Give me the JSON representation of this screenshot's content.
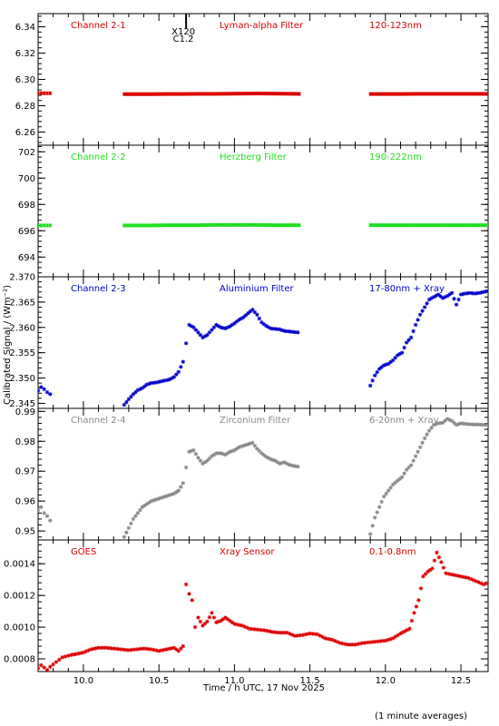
{
  "figure": {
    "xlabel": "Time / h UTC, 17 Nov 2025",
    "ylabel": "Calibrated Signal / (Wm⁻²)",
    "footnote": "(1 minute averages)",
    "event_marker": {
      "x": 10.68,
      "label_top": "X120",
      "label_bottom": "C1.2"
    }
  },
  "chart_data": [
    {
      "type": "scatter",
      "title_left": "Channel 2-1",
      "title_mid": "Lyman-alpha Filter",
      "title_right": "120-123nm",
      "color": "#dd0000",
      "marker": "dot",
      "xlim": [
        9.7,
        12.68
      ],
      "ylim": [
        6.25,
        6.35
      ],
      "yticks": [
        6.26,
        6.28,
        6.3,
        6.32,
        6.34
      ],
      "ytick_labels": [
        "6.26",
        "6.28",
        "6.30",
        "6.32",
        "6.34"
      ],
      "series": [
        {
          "x": [
            9.7,
            9.72,
            9.74,
            9.76,
            9.78
          ],
          "y": [
            6.2895,
            6.2895,
            6.2895,
            6.2895,
            6.2895
          ]
        },
        {
          "x": [
            10.27,
            10.35,
            10.45,
            10.55,
            10.65,
            10.75,
            10.85,
            10.95,
            11.05,
            11.15,
            11.25,
            11.35,
            11.43
          ],
          "y": [
            6.2888,
            6.2888,
            6.2888,
            6.2889,
            6.2889,
            6.289,
            6.289,
            6.2891,
            6.2892,
            6.2893,
            6.2892,
            6.2891,
            6.289
          ]
        },
        {
          "x": [
            11.9,
            12.0,
            12.1,
            12.2,
            12.3,
            12.4,
            12.5,
            12.6,
            12.68
          ],
          "y": [
            6.2889,
            6.2889,
            6.2889,
            6.289,
            6.289,
            6.289,
            6.289,
            6.289,
            6.289
          ]
        }
      ]
    },
    {
      "type": "scatter",
      "title_left": "Channel 2-2",
      "title_mid": "Herzberg Filter",
      "title_right": "190-222nm",
      "color": "#22dd22",
      "marker": "dot",
      "xlim": [
        9.7,
        12.68
      ],
      "ylim": [
        692.5,
        702.5
      ],
      "yticks": [
        694,
        696,
        698,
        700,
        702
      ],
      "ytick_labels": [
        "694",
        "696",
        "698",
        "700",
        "702"
      ],
      "series": [
        {
          "x": [
            9.7,
            9.72,
            9.74,
            9.76,
            9.78
          ],
          "y": [
            696.4,
            696.4,
            696.4,
            696.4,
            696.4
          ]
        },
        {
          "x": [
            10.27,
            10.35,
            10.45,
            10.55,
            10.65,
            10.75,
            10.85,
            10.95,
            11.05,
            11.15,
            11.25,
            11.35,
            11.43
          ],
          "y": [
            696.4,
            696.4,
            696.4,
            696.42,
            696.42,
            696.42,
            696.44,
            696.44,
            696.44,
            696.44,
            696.42,
            696.42,
            696.42
          ]
        },
        {
          "x": [
            11.9,
            12.0,
            12.1,
            12.2,
            12.3,
            12.4,
            12.5,
            12.6,
            12.68
          ],
          "y": [
            696.42,
            696.42,
            696.42,
            696.42,
            696.42,
            696.42,
            696.42,
            696.42,
            696.42
          ]
        }
      ]
    },
    {
      "type": "scatter",
      "title_left": "Channel 2-3",
      "title_mid": "Aluminium Filter",
      "title_right": "17-80nm + Xray",
      "color": "#0000cc",
      "marker": "star",
      "xlim": [
        9.7,
        12.68
      ],
      "ylim": [
        2.344,
        2.37
      ],
      "yticks": [
        2.345,
        2.35,
        2.355,
        2.36,
        2.365,
        2.37
      ],
      "ytick_labels": [
        "2.345",
        "2.350",
        "2.355",
        "2.360",
        "2.365",
        "2.370"
      ],
      "series": [
        {
          "x": [
            9.7,
            9.72,
            9.74,
            9.76,
            9.78
          ],
          "y": [
            2.3475,
            2.3482,
            2.3478,
            2.3472,
            2.3468
          ]
        },
        {
          "x": [
            10.27,
            10.3,
            10.33,
            10.36,
            10.39,
            10.42,
            10.45,
            10.48,
            10.51,
            10.54,
            10.57,
            10.6,
            10.63,
            10.66,
            10.7,
            10.73,
            10.76,
            10.79,
            10.82,
            10.85,
            10.88,
            10.91,
            10.94,
            10.97,
            11.0,
            11.03,
            11.06,
            11.09,
            11.12,
            11.15,
            11.18,
            11.21,
            11.24,
            11.27,
            11.3,
            11.33,
            11.36,
            11.39,
            11.42
          ],
          "y": [
            2.3447,
            2.3458,
            2.3468,
            2.3476,
            2.348,
            2.3487,
            2.349,
            2.3491,
            2.3493,
            2.3495,
            2.3497,
            2.3502,
            2.3512,
            2.3532,
            2.3605,
            2.36,
            2.359,
            2.358,
            2.3585,
            2.3595,
            2.3605,
            2.36,
            2.3598,
            2.3602,
            2.3608,
            2.3615,
            2.362,
            2.3628,
            2.3635,
            2.3625,
            2.361,
            2.3603,
            2.3598,
            2.3597,
            2.3596,
            2.3593,
            2.3592,
            2.3591,
            2.359
          ]
        },
        {
          "x": [
            11.9,
            11.93,
            11.96,
            11.99,
            12.02,
            12.05,
            12.08,
            12.11,
            12.14,
            12.17,
            12.2,
            12.23,
            12.26,
            12.29,
            12.32,
            12.35,
            12.38,
            12.41,
            12.44,
            12.47,
            12.5,
            12.53,
            12.56,
            12.59,
            12.62,
            12.65,
            12.68
          ],
          "y": [
            2.3485,
            2.3505,
            2.3518,
            2.3525,
            2.3528,
            2.3535,
            2.3545,
            2.355,
            2.357,
            2.358,
            2.3605,
            2.3625,
            2.364,
            2.3655,
            2.366,
            2.3665,
            2.3658,
            2.3662,
            2.3668,
            2.3645,
            2.3665,
            2.3667,
            2.3668,
            2.3667,
            2.3668,
            2.367,
            2.3672
          ]
        }
      ]
    },
    {
      "type": "scatter",
      "title_left": "Channel 2-4",
      "title_mid": "Zirconium Filter",
      "title_right": "6-20nm + Xray",
      "color": "#888888",
      "marker": "star",
      "xlim": [
        9.7,
        12.68
      ],
      "ylim": [
        0.947,
        0.991
      ],
      "yticks": [
        0.95,
        0.96,
        0.97,
        0.98,
        0.99
      ],
      "ytick_labels": [
        "0.95",
        "0.96",
        "0.97",
        "0.98",
        "0.99"
      ],
      "series": [
        {
          "x": [
            9.7,
            9.72,
            9.74,
            9.76,
            9.78
          ],
          "y": [
            0.957,
            0.958,
            0.956,
            0.955,
            0.9535
          ]
        },
        {
          "x": [
            10.27,
            10.3,
            10.33,
            10.36,
            10.39,
            10.42,
            10.45,
            10.48,
            10.51,
            10.54,
            10.57,
            10.6,
            10.63,
            10.66,
            10.7,
            10.73,
            10.76,
            10.79,
            10.82,
            10.85,
            10.88,
            10.91,
            10.94,
            10.97,
            11.0,
            11.03,
            11.06,
            11.09,
            11.12,
            11.15,
            11.18,
            11.21,
            11.24,
            11.27,
            11.3,
            11.33,
            11.36,
            11.39,
            11.42
          ],
          "y": [
            0.948,
            0.951,
            0.954,
            0.956,
            0.958,
            0.959,
            0.96,
            0.9605,
            0.961,
            0.9615,
            0.962,
            0.9625,
            0.9635,
            0.966,
            0.9765,
            0.977,
            0.9745,
            0.9725,
            0.9735,
            0.975,
            0.976,
            0.976,
            0.9755,
            0.9765,
            0.977,
            0.978,
            0.9785,
            0.979,
            0.9795,
            0.9775,
            0.976,
            0.9748,
            0.974,
            0.9735,
            0.9725,
            0.973,
            0.9722,
            0.9718,
            0.9715
          ]
        },
        {
          "x": [
            11.9,
            11.93,
            11.96,
            11.99,
            12.02,
            12.05,
            12.08,
            12.11,
            12.14,
            12.17,
            12.2,
            12.23,
            12.26,
            12.29,
            12.32,
            12.35,
            12.38,
            12.41,
            12.44,
            12.47,
            12.5,
            12.53,
            12.56,
            12.59,
            12.62,
            12.65,
            12.68
          ],
          "y": [
            0.949,
            0.9545,
            0.958,
            0.9615,
            0.9635,
            0.9655,
            0.9668,
            0.968,
            0.9705,
            0.972,
            0.975,
            0.978,
            0.981,
            0.9835,
            0.9855,
            0.986,
            0.9862,
            0.9875,
            0.9868,
            0.9855,
            0.986,
            0.9858,
            0.9857,
            0.9856,
            0.9856,
            0.9855,
            0.9855
          ]
        }
      ]
    },
    {
      "type": "scatter",
      "title_left": "GOES",
      "title_mid": "Xray Sensor",
      "title_right": "0.1-0.8nm",
      "color": "#dd0000",
      "marker": "star",
      "xlim": [
        9.7,
        12.68
      ],
      "ylim": [
        0.00072,
        0.00155
      ],
      "yticks": [
        0.0008,
        0.001,
        0.0012,
        0.0014
      ],
      "ytick_labels": [
        "0.0008",
        "0.0010",
        "0.0012",
        "0.0014"
      ],
      "xticks": [
        10.0,
        10.5,
        11.0,
        11.5,
        12.0,
        12.5
      ],
      "xtick_labels": [
        "10.0",
        "10.5",
        "11.0",
        "11.5",
        "12.0",
        "12.5"
      ],
      "series": [
        {
          "x": [
            9.7,
            9.72,
            9.74,
            9.76,
            9.78,
            9.8,
            9.82,
            9.84,
            9.86,
            9.88,
            9.9,
            9.92,
            9.95,
            10.0,
            10.05,
            10.1,
            10.15,
            10.2,
            10.25,
            10.3,
            10.35,
            10.4,
            10.45,
            10.5,
            10.55,
            10.6,
            10.63,
            10.66,
            10.68,
            10.7,
            10.72,
            10.74,
            10.76,
            10.79,
            10.82,
            10.85,
            10.88,
            10.91,
            10.94,
            10.97,
            11.0,
            11.05,
            11.1,
            11.15,
            11.2,
            11.25,
            11.3,
            11.35,
            11.4,
            11.45,
            11.5,
            11.55,
            11.6,
            11.65,
            11.7,
            11.75,
            11.8,
            11.85,
            11.9,
            11.95,
            12.0,
            12.05,
            12.1,
            12.13,
            12.16,
            12.19,
            12.22,
            12.25,
            12.28,
            12.31,
            12.34,
            12.37,
            12.4,
            12.45,
            12.5,
            12.55,
            12.6,
            12.65,
            12.68
          ],
          "y": [
            0.00074,
            0.00076,
            0.000745,
            0.00073,
            0.00075,
            0.000765,
            0.00078,
            0.000795,
            0.00081,
            0.000815,
            0.00082,
            0.000825,
            0.00083,
            0.00084,
            0.00086,
            0.00087,
            0.00087,
            0.000865,
            0.00086,
            0.000855,
            0.00086,
            0.000865,
            0.00086,
            0.00085,
            0.00086,
            0.00087,
            0.00085,
            0.00088,
            0.00127,
            0.00121,
            0.00117,
            0.001,
            0.00106,
            0.00101,
            0.001035,
            0.00109,
            0.00103,
            0.00104,
            0.00106,
            0.00104,
            0.00102,
            0.00101,
            0.00099,
            0.000985,
            0.00098,
            0.00097,
            0.000965,
            0.000965,
            0.000945,
            0.00095,
            0.00096,
            0.000955,
            0.00093,
            0.00092,
            0.0009,
            0.00089,
            0.00089,
            0.0009,
            0.000905,
            0.00091,
            0.000915,
            0.00093,
            0.00096,
            0.000975,
            0.00099,
            0.00109,
            0.00117,
            0.00132,
            0.00135,
            0.00137,
            0.00147,
            0.00141,
            0.00134,
            0.00133,
            0.00132,
            0.00131,
            0.00129,
            0.00127,
            0.00128
          ]
        }
      ]
    }
  ]
}
